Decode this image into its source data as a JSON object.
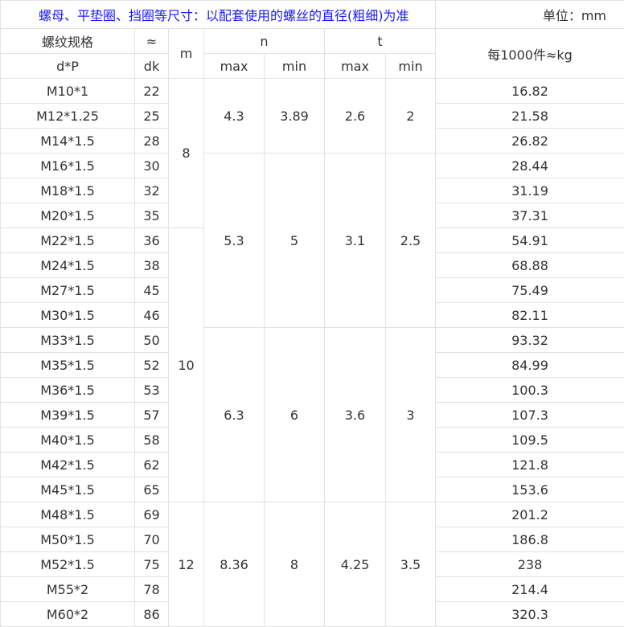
{
  "title": "螺母、平垫圈、挡圈等尺寸：以配套使用的螺丝的直径(粗细)为准",
  "unit": "单位：mm",
  "colors": {
    "title": "#1a1aff",
    "text": "#333333",
    "border": "#e2e2e2"
  },
  "headers": {
    "spec_top": "螺纹规格",
    "spec_bottom": "d*P",
    "dk_top": "≈",
    "dk_bottom": "dk",
    "m": "m",
    "n": "n",
    "t": "t",
    "max": "max",
    "min": "min",
    "weight": "每1000件≈kg"
  },
  "rows": [
    [
      "M10*1",
      "22",
      "16.82"
    ],
    [
      "M12*1.25",
      "25",
      "21.58"
    ],
    [
      "M14*1.5",
      "28",
      "26.82"
    ],
    [
      "M16*1.5",
      "30",
      "28.44"
    ],
    [
      "M18*1.5",
      "32",
      "31.19"
    ],
    [
      "M20*1.5",
      "35",
      "37.31"
    ],
    [
      "M22*1.5",
      "36",
      "54.91"
    ],
    [
      "M24*1.5",
      "38",
      "68.88"
    ],
    [
      "M27*1.5",
      "45",
      "75.49"
    ],
    [
      "M30*1.5",
      "46",
      "82.11"
    ],
    [
      "M33*1.5",
      "50",
      "93.32"
    ],
    [
      "M35*1.5",
      "52",
      "84.99"
    ],
    [
      "M36*1.5",
      "53",
      "100.3"
    ],
    [
      "M39*1.5",
      "57",
      "107.3"
    ],
    [
      "M40*1.5",
      "58",
      "109.5"
    ],
    [
      "M42*1.5",
      "62",
      "121.8"
    ],
    [
      "M45*1.5",
      "65",
      "153.6"
    ],
    [
      "M48*1.5",
      "69",
      "201.2"
    ],
    [
      "M50*1.5",
      "70",
      "186.8"
    ],
    [
      "M52*1.5",
      "75",
      "238"
    ],
    [
      "M55*2",
      "78",
      "214.4"
    ],
    [
      "M60*2",
      "86",
      "320.3"
    ]
  ],
  "m_groups": [
    {
      "value": "8",
      "span": 6
    },
    {
      "value": "10",
      "span": 11
    },
    {
      "value": "12",
      "span": 5
    }
  ],
  "nt_groups": [
    {
      "n_max": "4.3",
      "n_min": "3.89",
      "t_max": "2.6",
      "t_min": "2",
      "span": 3
    },
    {
      "n_max": "5.3",
      "n_min": "5",
      "t_max": "3.1",
      "t_min": "2.5",
      "span": 7
    },
    {
      "n_max": "6.3",
      "n_min": "6",
      "t_max": "3.6",
      "t_min": "3",
      "span": 7
    },
    {
      "n_max": "8.36",
      "n_min": "8",
      "t_max": "4.25",
      "t_min": "3.5",
      "span": 5
    }
  ]
}
